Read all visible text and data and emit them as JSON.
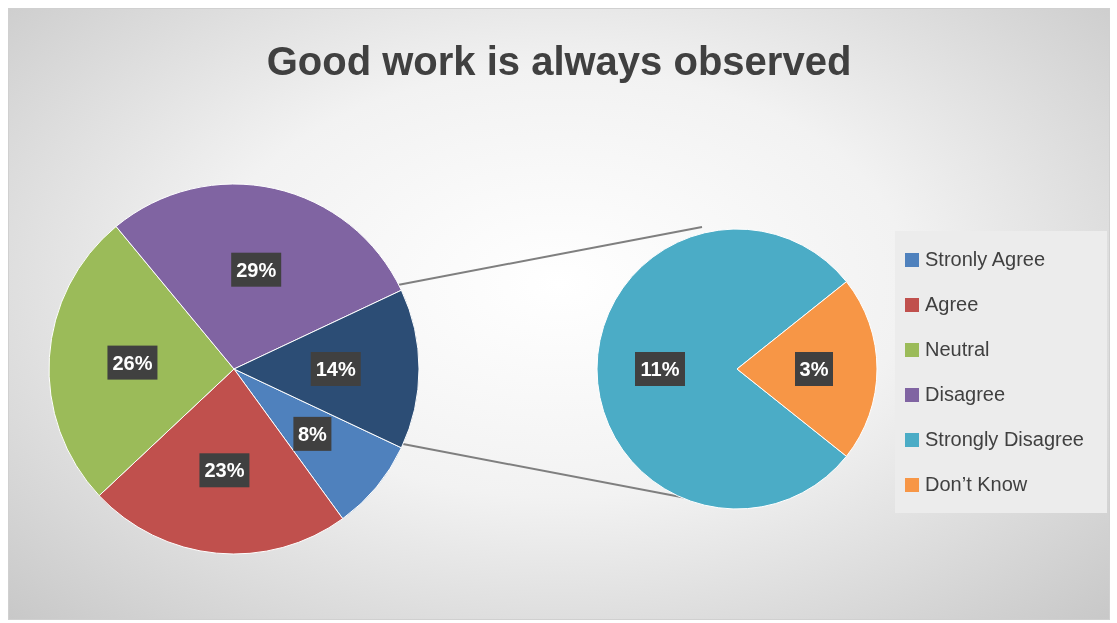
{
  "chart_data": [
    {
      "type": "pie",
      "title": "Good work is always observed",
      "categories": [
        "Stronly Agree",
        "Agree",
        "Neutral",
        "Disagree",
        null
      ],
      "values": [
        8,
        23,
        26,
        29,
        14
      ],
      "colors": [
        "#4f81bd",
        "#c0504d",
        "#9bbb59",
        "#8064a2",
        "#2c4d75"
      ],
      "value_labels": [
        "8%",
        "23%",
        "26%",
        "29%",
        "14%"
      ],
      "legend": "right"
    },
    {
      "type": "pie",
      "categories": [
        "Strongly Disagree",
        "Don’t Know"
      ],
      "values": [
        11,
        3
      ],
      "colors": [
        "#4bacc6",
        "#f79646"
      ],
      "value_labels": [
        "11%",
        "3%"
      ],
      "legend": "right"
    }
  ]
}
